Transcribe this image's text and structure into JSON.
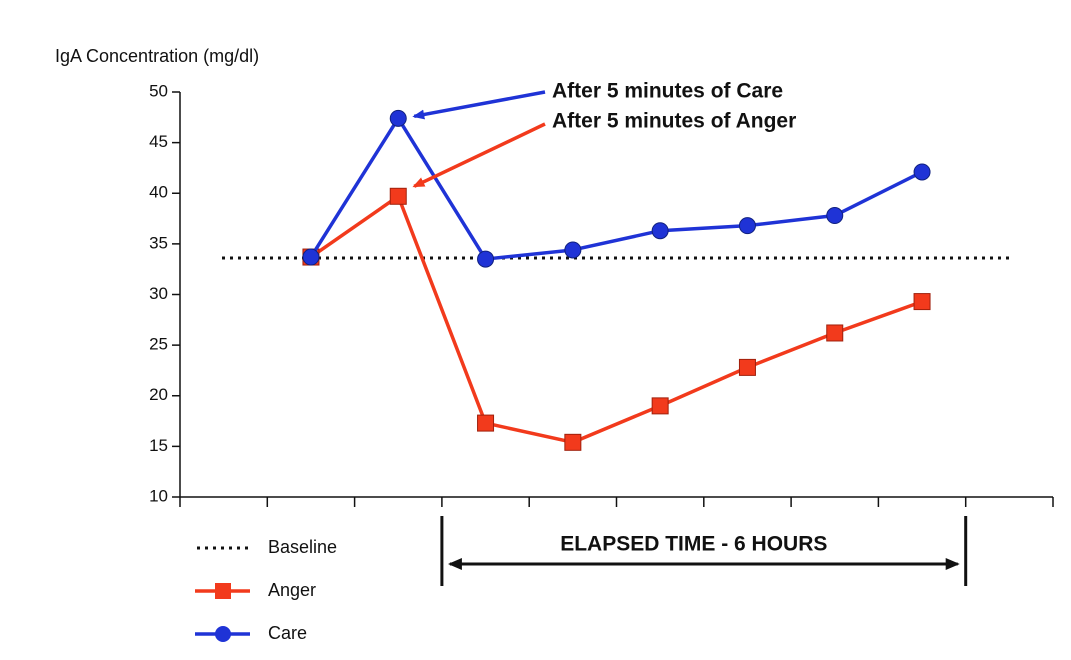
{
  "chart_data": {
    "type": "line",
    "y_label": "IgA Concentration (mg/dl)",
    "categories": [
      null,
      null,
      null,
      null,
      null,
      null,
      null,
      null,
      null,
      null
    ],
    "series": [
      {
        "name": "Anger",
        "color": "#f23a1c",
        "marker": "square",
        "values": [
          null,
          33.7,
          39.7,
          17.3,
          15.4,
          19.0,
          22.8,
          26.2,
          29.3,
          null
        ]
      },
      {
        "name": "Care",
        "color": "#1f33d6",
        "marker": "circle",
        "values": [
          null,
          33.7,
          47.4,
          33.5,
          34.4,
          36.3,
          36.8,
          37.8,
          42.1,
          null
        ]
      }
    ],
    "baseline": {
      "name": "Baseline",
      "value": 33.6,
      "color": "#111111"
    },
    "annotations": [
      {
        "text": "After 5 minutes of Care",
        "series": 1
      },
      {
        "text": "After 5 minutes of Anger",
        "series": 0
      }
    ],
    "elapsed_label": "ELAPSED TIME - 6 HOURS",
    "ylim": [
      10,
      50
    ],
    "yticks": [
      10,
      15,
      20,
      25,
      30,
      35,
      40,
      45,
      50
    ]
  }
}
